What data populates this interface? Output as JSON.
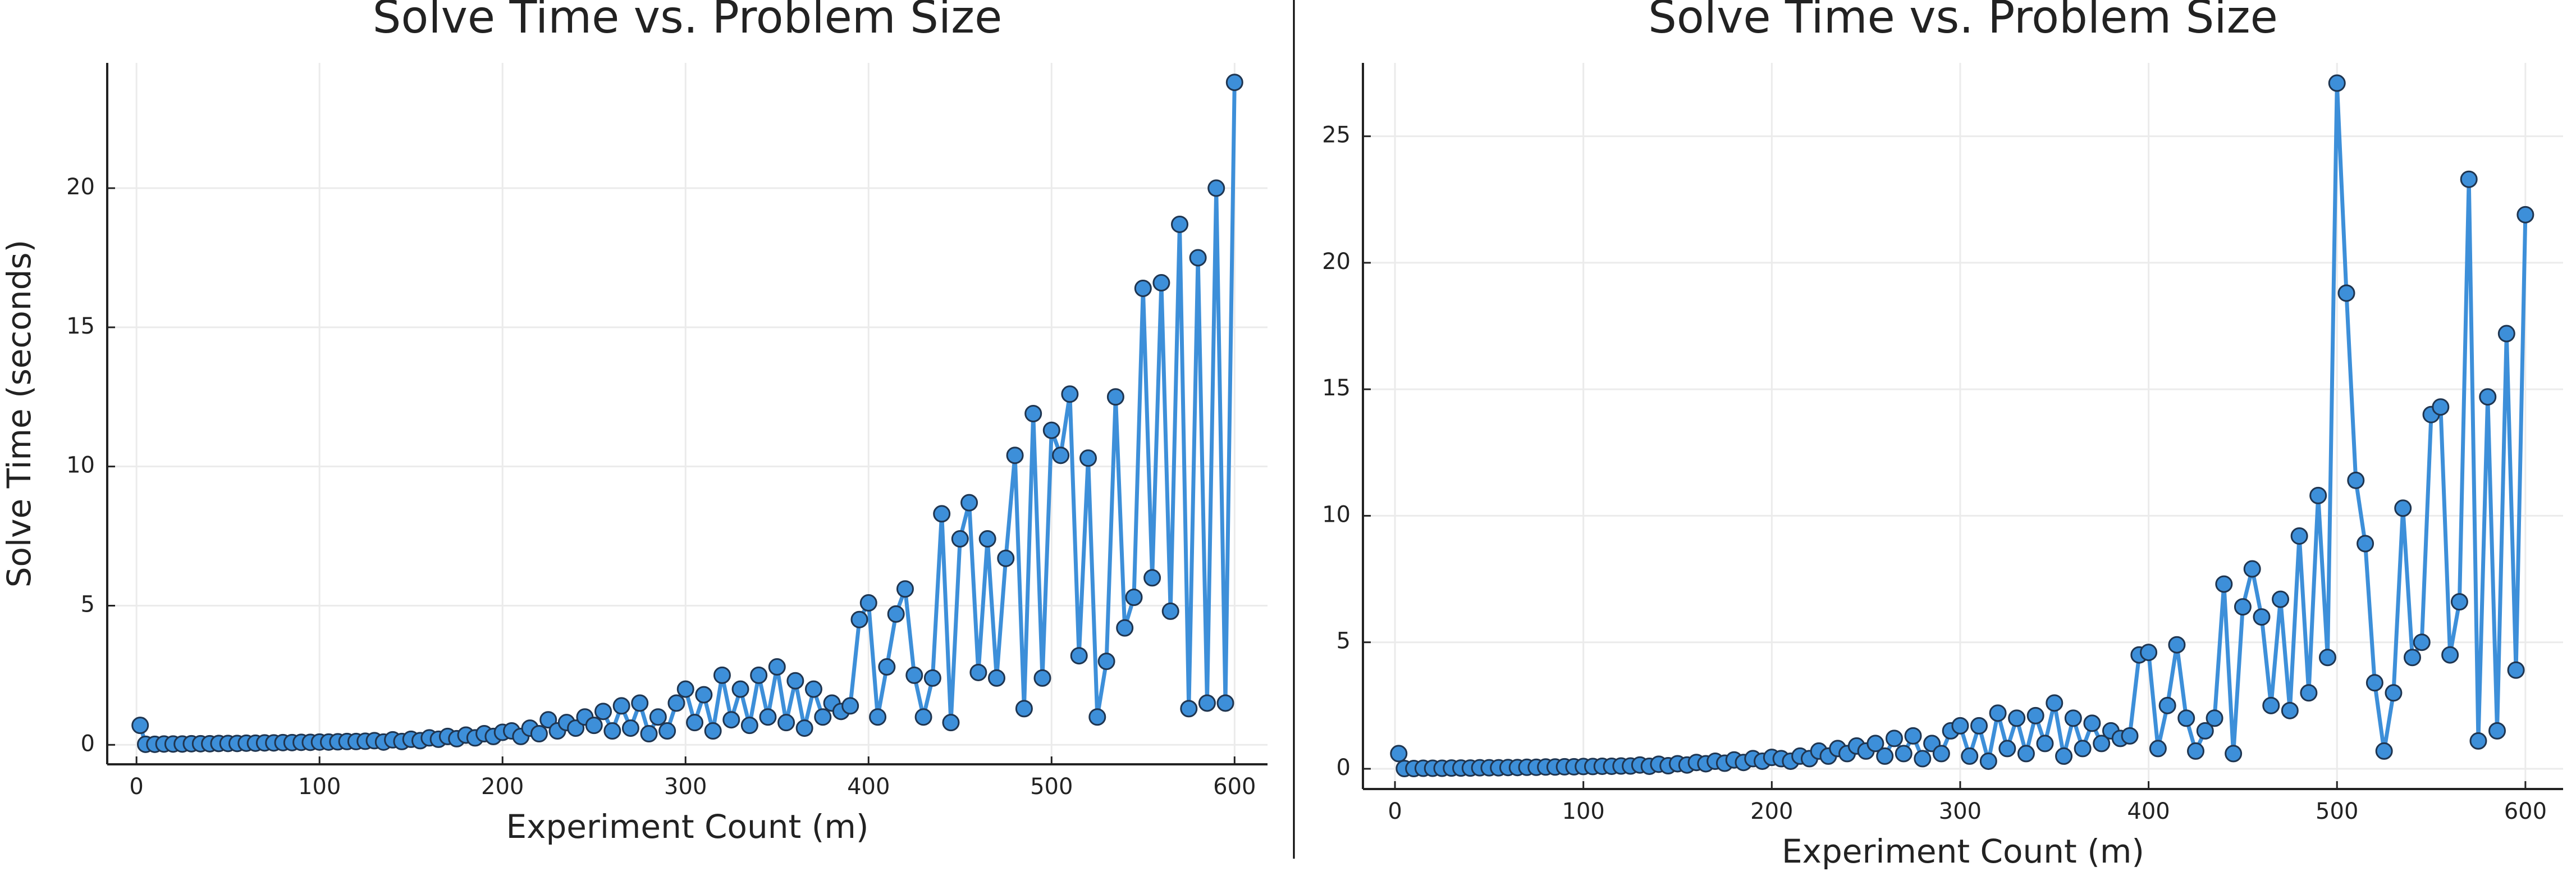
{
  "chart_data": [
    {
      "type": "line",
      "title": "Solve Time vs. Problem Size",
      "x_label": "Experiment Count (m)",
      "y_label": "Solve Time (seconds)",
      "x": [
        2,
        5,
        10,
        15,
        20,
        25,
        30,
        35,
        40,
        45,
        50,
        55,
        60,
        65,
        70,
        75,
        80,
        85,
        90,
        95,
        100,
        105,
        110,
        115,
        120,
        125,
        130,
        135,
        140,
        145,
        150,
        155,
        160,
        165,
        170,
        175,
        180,
        185,
        190,
        195,
        200,
        205,
        210,
        215,
        220,
        225,
        230,
        235,
        240,
        245,
        250,
        255,
        260,
        265,
        270,
        275,
        280,
        285,
        290,
        295,
        300,
        305,
        310,
        315,
        320,
        325,
        330,
        335,
        340,
        345,
        350,
        355,
        360,
        365,
        370,
        375,
        380,
        385,
        390,
        395,
        400,
        405,
        410,
        415,
        420,
        425,
        430,
        435,
        440,
        445,
        450,
        455,
        460,
        465,
        470,
        475,
        480,
        485,
        490,
        495,
        500,
        505,
        510,
        515,
        520,
        525,
        530,
        535,
        540,
        545,
        550,
        555,
        560,
        565,
        570,
        575,
        580,
        585,
        590,
        595,
        600
      ],
      "series": [
        {
          "name": "y1",
          "color": "#3d8fd9",
          "values": [
            0.7,
            0.02,
            0.02,
            0.03,
            0.03,
            0.03,
            0.04,
            0.04,
            0.04,
            0.05,
            0.05,
            0.05,
            0.06,
            0.06,
            0.07,
            0.07,
            0.08,
            0.08,
            0.09,
            0.09,
            0.1,
            0.1,
            0.11,
            0.12,
            0.12,
            0.13,
            0.15,
            0.1,
            0.18,
            0.12,
            0.2,
            0.15,
            0.25,
            0.2,
            0.3,
            0.22,
            0.35,
            0.25,
            0.4,
            0.3,
            0.45,
            0.5,
            0.3,
            0.6,
            0.4,
            0.9,
            0.5,
            0.8,
            0.6,
            1.0,
            0.7,
            1.2,
            0.5,
            1.4,
            0.6,
            1.5,
            0.4,
            1.0,
            0.5,
            1.5,
            2.0,
            0.8,
            1.8,
            0.5,
            2.5,
            0.9,
            2.0,
            0.7,
            2.5,
            1.0,
            2.8,
            0.8,
            2.3,
            0.6,
            2.0,
            1.0,
            1.5,
            1.2,
            1.4,
            4.5,
            5.1,
            1.0,
            2.8,
            4.7,
            5.6,
            2.5,
            1.0,
            2.4,
            8.3,
            0.8,
            7.4,
            8.7,
            2.6,
            7.4,
            2.4,
            6.7,
            10.4,
            1.3,
            11.9,
            2.4,
            11.3,
            10.4,
            12.6,
            3.2,
            10.3,
            1.0,
            3.0,
            12.5,
            4.2,
            5.3,
            16.4,
            6.0,
            16.6,
            4.8,
            18.7,
            1.3,
            17.5,
            1.5,
            20.0,
            1.5,
            23.8
          ]
        }
      ],
      "xlim": [
        -16,
        618
      ],
      "xticks": [
        0,
        100,
        200,
        300,
        400,
        500,
        600
      ],
      "ylim": [
        -0.7,
        24.5
      ],
      "yticks": [
        0,
        5,
        10,
        15,
        20
      ],
      "grid": true
    },
    {
      "type": "line",
      "title": "Solve Time vs. Problem Size",
      "x_label": "Experiment Count (m)",
      "x": [
        2,
        5,
        10,
        15,
        20,
        25,
        30,
        35,
        40,
        45,
        50,
        55,
        60,
        65,
        70,
        75,
        80,
        85,
        90,
        95,
        100,
        105,
        110,
        115,
        120,
        125,
        130,
        135,
        140,
        145,
        150,
        155,
        160,
        165,
        170,
        175,
        180,
        185,
        190,
        195,
        200,
        205,
        210,
        215,
        220,
        225,
        230,
        235,
        240,
        245,
        250,
        255,
        260,
        265,
        270,
        275,
        280,
        285,
        290,
        295,
        300,
        305,
        310,
        315,
        320,
        325,
        330,
        335,
        340,
        345,
        350,
        355,
        360,
        365,
        370,
        375,
        380,
        385,
        390,
        395,
        400,
        405,
        410,
        415,
        420,
        425,
        430,
        435,
        440,
        445,
        450,
        455,
        460,
        465,
        470,
        475,
        480,
        485,
        490,
        495,
        500,
        505,
        510,
        515,
        520,
        525,
        530,
        535,
        540,
        545,
        550,
        555,
        560,
        565,
        570,
        575,
        580,
        585,
        590,
        595,
        600
      ],
      "series": [
        {
          "name": "y1",
          "color": "#3d8fd9",
          "values": [
            0.6,
            0.01,
            0.01,
            0.02,
            0.02,
            0.02,
            0.03,
            0.03,
            0.03,
            0.04,
            0.04,
            0.04,
            0.05,
            0.05,
            0.06,
            0.06,
            0.07,
            0.07,
            0.08,
            0.08,
            0.09,
            0.09,
            0.1,
            0.1,
            0.11,
            0.11,
            0.15,
            0.1,
            0.18,
            0.12,
            0.2,
            0.15,
            0.25,
            0.2,
            0.3,
            0.22,
            0.35,
            0.25,
            0.4,
            0.3,
            0.45,
            0.4,
            0.3,
            0.5,
            0.4,
            0.7,
            0.5,
            0.8,
            0.6,
            0.9,
            0.7,
            1.0,
            0.5,
            1.2,
            0.6,
            1.3,
            0.4,
            1.0,
            0.6,
            1.5,
            1.7,
            0.5,
            1.7,
            0.3,
            2.2,
            0.8,
            2.0,
            0.6,
            2.1,
            1.0,
            2.6,
            0.5,
            2.0,
            0.8,
            1.8,
            1.0,
            1.5,
            1.2,
            1.3,
            4.5,
            4.6,
            0.8,
            2.5,
            4.9,
            2.0,
            0.7,
            1.5,
            2.0,
            7.3,
            0.6,
            6.4,
            7.9,
            6.0,
            2.5,
            6.7,
            2.3,
            9.2,
            3.0,
            10.8,
            4.4,
            27.1,
            18.8,
            11.4,
            8.9,
            3.4,
            0.7,
            3.0,
            10.3,
            4.4,
            5.0,
            14.0,
            14.3,
            4.5,
            6.6,
            23.3,
            1.1,
            14.7,
            1.5,
            17.2,
            3.9,
            21.9
          ]
        }
      ],
      "xlim": [
        -17,
        620
      ],
      "xticks": [
        0,
        100,
        200,
        300,
        400,
        500,
        600
      ],
      "ylim": [
        -0.8,
        27.9
      ],
      "yticks": [
        0,
        5,
        10,
        15,
        20,
        25
      ],
      "grid": true
    }
  ]
}
